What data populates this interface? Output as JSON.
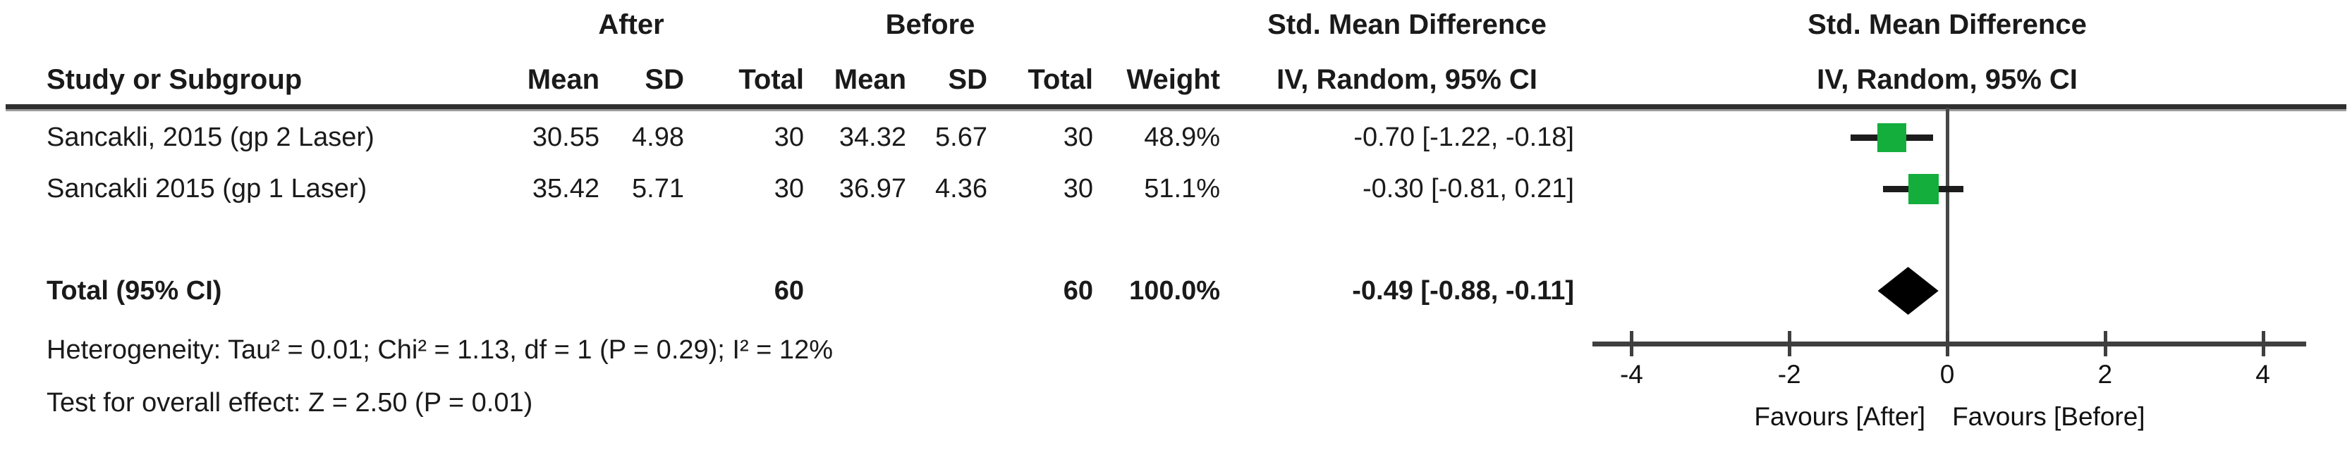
{
  "header": {
    "group_after": "After",
    "group_before": "Before",
    "smd_left": "Std. Mean Difference",
    "smd_right": "Std. Mean Difference",
    "col_study": "Study or Subgroup",
    "col_mean_after": "Mean",
    "col_sd_after": "SD",
    "col_total_after": "Total",
    "col_mean_before": "Mean",
    "col_sd_before": "SD",
    "col_total_before": "Total",
    "col_weight": "Weight",
    "col_ci_left": "IV, Random, 95% CI",
    "col_ci_right": "IV, Random, 95% CI"
  },
  "rows": [
    {
      "study": "Sancakli, 2015 (gp 2 Laser)",
      "after_mean": "30.55",
      "after_sd": "4.98",
      "after_total": "30",
      "before_mean": "34.32",
      "before_sd": "5.67",
      "before_total": "30",
      "weight": "48.9%",
      "smd_ci": "-0.70 [-1.22, -0.18]"
    },
    {
      "study": "Sancakli 2015 (gp 1 Laser)",
      "after_mean": "35.42",
      "after_sd": "5.71",
      "after_total": "30",
      "before_mean": "36.97",
      "before_sd": "4.36",
      "before_total": "30",
      "weight": "51.1%",
      "smd_ci": "-0.30 [-0.81, 0.21]"
    }
  ],
  "total": {
    "label": "Total (95% CI)",
    "after_total": "60",
    "before_total": "60",
    "weight": "100.0%",
    "smd_ci": "-0.49 [-0.88, -0.11]"
  },
  "footnotes": {
    "heterogeneity": "Heterogeneity: Tau² = 0.01; Chi² = 1.13, df = 1 (P = 0.29); I² = 12%",
    "overall_effect": "Test for overall effect: Z = 2.50 (P = 0.01)"
  },
  "chart_data": {
    "type": "scatter",
    "subtype": "forest-plot",
    "effect_measure": "Std. Mean Difference (IV, Random, 95% CI)",
    "x_axis": {
      "ticks": [
        -4,
        -2,
        0,
        2,
        4
      ],
      "range": [
        -4.5,
        4.55
      ],
      "zero_line": 0
    },
    "studies": [
      {
        "name": "Sancakli, 2015 (gp 2 Laser)",
        "smd": -0.7,
        "ci_low": -1.22,
        "ci_high": -0.18,
        "weight_pct": 48.9
      },
      {
        "name": "Sancakli 2015 (gp 1 Laser)",
        "smd": -0.3,
        "ci_low": -0.81,
        "ci_high": 0.21,
        "weight_pct": 51.1
      }
    ],
    "total": {
      "name": "Total (95% CI)",
      "smd": -0.49,
      "ci_low": -0.88,
      "ci_high": -0.11,
      "weight_pct": 100.0
    },
    "xlabel_left": "Favours [After]",
    "xlabel_right": "Favours [Before]",
    "marker_color": "#14ae3d",
    "ci_color": "#1c1c1c",
    "diamond_color": "#000000"
  }
}
